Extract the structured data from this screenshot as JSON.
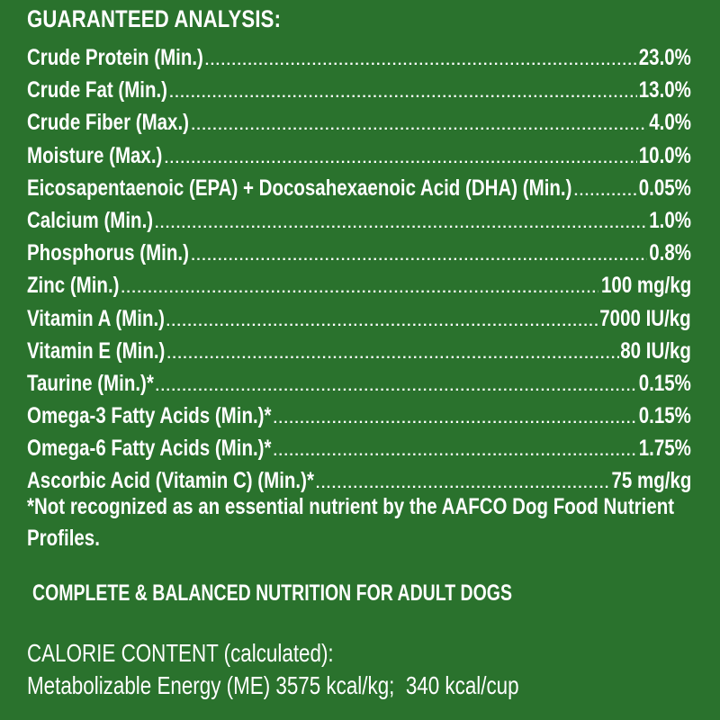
{
  "colors": {
    "background": "#2a722d",
    "text": "#ffffff"
  },
  "heading": "GUARANTEED ANALYSIS:",
  "analysis": [
    {
      "label": "Crude Protein (Min.)",
      "value": "23.0%"
    },
    {
      "label": "Crude Fat (Min.)",
      "value": "13.0%"
    },
    {
      "label": "Crude Fiber (Max.)",
      "value": "4.0%"
    },
    {
      "label": "Moisture (Max.)",
      "value": "10.0%"
    },
    {
      "label": "Eicosapentaenoic (EPA) + Docosahexaenoic Acid (DHA) (Min.)",
      "value": "0.05%"
    },
    {
      "label": "Calcium (Min.)",
      "value": "1.0%"
    },
    {
      "label": "Phosphorus (Min.)",
      "value": "0.8%"
    },
    {
      "label": "Zinc (Min.)",
      "value": "100 mg/kg"
    },
    {
      "label": "Vitamin A (Min.)",
      "value": "7000 IU/kg"
    },
    {
      "label": "Vitamin E (Min.)",
      "value": "80 IU/kg"
    },
    {
      "label": "Taurine (Min.)*",
      "value": "0.15%"
    },
    {
      "label": "Omega-3 Fatty Acids (Min.)*",
      "value": "0.15%"
    },
    {
      "label": "Omega-6 Fatty Acids (Min.)*",
      "value": "1.75%"
    },
    {
      "label": "Ascorbic Acid (Vitamin C) (Min.)*",
      "value": "75 mg/kg"
    }
  ],
  "footnote": "*Not recognized as an essential nutrient by the AAFCO Dog Food Nutrient Profiles.",
  "statement": "COMPLETE & BALANCED NUTRITION FOR ADULT DOGS",
  "calorie": {
    "heading": "CALORIE CONTENT (calculated):",
    "line": "Metabolizable Energy (ME) 3575 kcal/kg;  340 kcal/cup"
  }
}
